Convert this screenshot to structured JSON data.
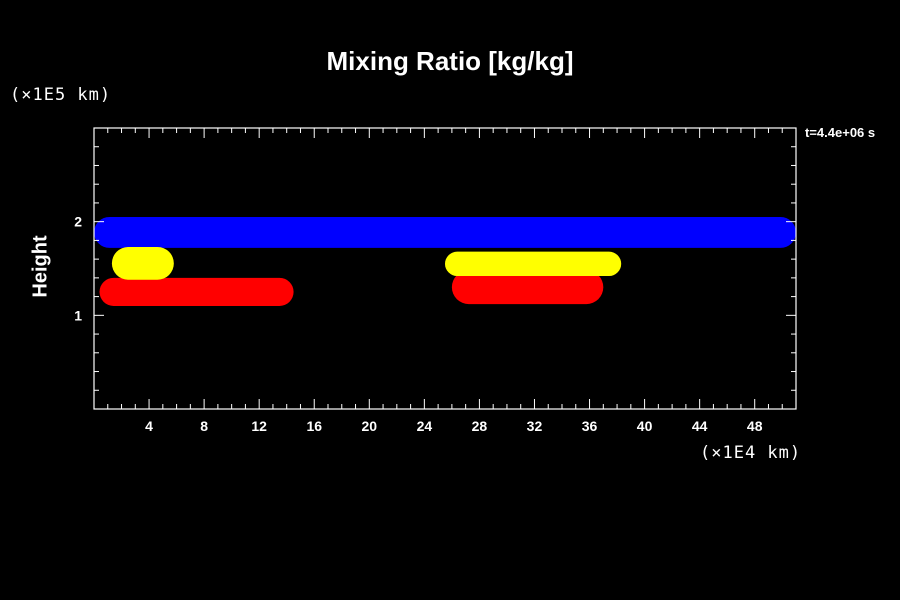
{
  "chart_data": {
    "type": "area",
    "title": "Mixing Ratio [kg/kg]",
    "ylabel": "Height",
    "y_unit": "(×1E5 km)",
    "x_unit": "(×1E4 km)",
    "time_label": "t=4.4e+06 s",
    "xlim": [
      0,
      51
    ],
    "ylim": [
      0,
      3
    ],
    "x_ticks": [
      4,
      8,
      12,
      16,
      20,
      24,
      28,
      32,
      36,
      40,
      44,
      48
    ],
    "y_ticks": [
      1,
      2
    ],
    "regions": [
      {
        "color": "#0000ff",
        "x": [
          0,
          51
        ],
        "y": [
          1.72,
          2.05
        ]
      },
      {
        "color": "#ff0000",
        "x": [
          0.4,
          14.5
        ],
        "y": [
          1.1,
          1.4
        ]
      },
      {
        "color": "#ffff00",
        "x": [
          1.3,
          5.8
        ],
        "y": [
          1.38,
          1.73
        ]
      },
      {
        "color": "#ff0000",
        "x": [
          26,
          37
        ],
        "y": [
          1.12,
          1.48
        ]
      },
      {
        "color": "#ffff00",
        "x": [
          25.5,
          38.3
        ],
        "y": [
          1.42,
          1.68
        ]
      }
    ]
  }
}
